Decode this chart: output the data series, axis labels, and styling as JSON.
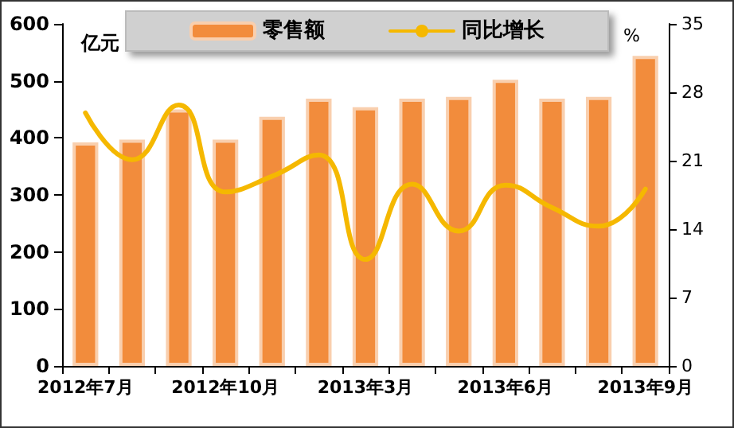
{
  "chart_data": {
    "type": "bar",
    "categories": [
      "2012年7月",
      null,
      null,
      "2012年10月",
      null,
      null,
      "2013年3月",
      null,
      null,
      "2013年6月",
      null,
      null,
      "2013年9月"
    ],
    "series": [
      {
        "name": "零售额",
        "color": "#f28c3c",
        "values": [
          392,
          397,
          450,
          397,
          437,
          469,
          454,
          469,
          472,
          502,
          469,
          472,
          544
        ]
      },
      {
        "name": "同比增长",
        "type": "line",
        "axis": "y2",
        "color": "#f5b800",
        "values": [
          25.9,
          21.1,
          26.7,
          17.8,
          19.4,
          21.6,
          10.9,
          18.6,
          13.8,
          18.5,
          16.2,
          14.3,
          18.1
        ]
      }
    ],
    "ylabel": "亿元",
    "y2label": "%",
    "ylim": [
      0,
      600
    ],
    "yticks": [
      0,
      100,
      200,
      300,
      400,
      500,
      600
    ],
    "y2lim": [
      0,
      35
    ],
    "y2ticks": [
      0,
      7,
      14,
      21,
      28,
      35
    ],
    "legend": "top",
    "grid": false,
    "marker": "none",
    "line_style": "solid"
  }
}
